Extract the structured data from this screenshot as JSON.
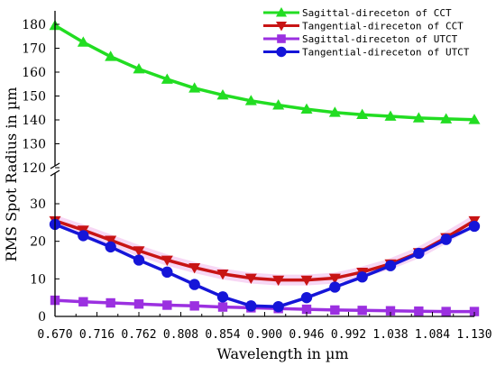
{
  "chart_data": {
    "type": "line",
    "title": "",
    "xlabel": "Wavelength in µm",
    "ylabel": "RMS Spot Radius in µm",
    "x": [
      0.67,
      0.701,
      0.731,
      0.762,
      0.793,
      0.823,
      0.854,
      0.885,
      0.915,
      0.946,
      0.977,
      1.007,
      1.038,
      1.069,
      1.099,
      1.13
    ],
    "x_ticks": [
      "0.670",
      "0.716",
      "0.762",
      "0.808",
      "0.854",
      "0.900",
      "0.946",
      "0.992",
      "1.038",
      "1.084",
      "1.130"
    ],
    "y_ticks_lower": [
      "0",
      "10",
      "20",
      "30"
    ],
    "y_ticks_upper": [
      "120",
      "130",
      "140",
      "150",
      "160",
      "170",
      "180"
    ],
    "ylim_lower": [
      0,
      35
    ],
    "ylim_upper": [
      120,
      182
    ],
    "axis_break": true,
    "grid": false,
    "legend_position": "top-right",
    "series": [
      {
        "name": "Sagittal-direceton of CCT",
        "color": "#22dd22",
        "marker": "triangle-up",
        "values": [
          179.5,
          172.5,
          166.5,
          161.3,
          157.0,
          153.3,
          150.4,
          148.0,
          146.2,
          144.5,
          143.1,
          142.2,
          141.5,
          140.8,
          140.4,
          140.1
        ]
      },
      {
        "name": "Tangential-direceton of CCT",
        "color": "#c81414",
        "marker": "triangle-down",
        "values": [
          25.5,
          23.0,
          20.3,
          17.5,
          15.0,
          13.0,
          11.3,
          10.2,
          9.7,
          9.7,
          10.2,
          11.8,
          14.0,
          17.0,
          21.0,
          25.5
        ]
      },
      {
        "name": "Sagittal-direceton of UTCT",
        "color": "#9b30e0",
        "marker": "square",
        "values": [
          4.3,
          3.9,
          3.6,
          3.3,
          3.0,
          2.8,
          2.5,
          2.3,
          2.1,
          1.9,
          1.7,
          1.6,
          1.5,
          1.4,
          1.3,
          1.3
        ]
      },
      {
        "name": "Tangential-direceton of UTCT",
        "color": "#1515d8",
        "marker": "circle",
        "values": [
          24.5,
          21.5,
          18.5,
          15.0,
          11.8,
          8.5,
          5.2,
          2.8,
          2.6,
          5.0,
          7.8,
          10.5,
          13.5,
          16.8,
          20.5,
          24.0
        ]
      }
    ]
  }
}
